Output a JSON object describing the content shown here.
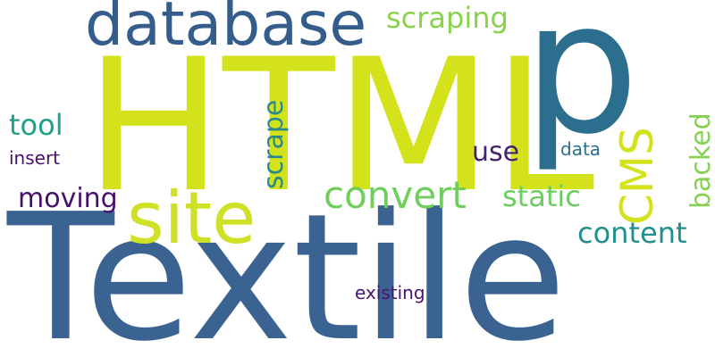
{
  "words": {
    "textile": {
      "text": "Textile",
      "color": "#3b6392"
    },
    "html": {
      "text": "HTML",
      "color": "#d3e21a"
    },
    "p": {
      "text": "p",
      "color": "#2c6e8d"
    },
    "site": {
      "text": "site",
      "color": "#cfe126"
    },
    "database": {
      "text": "database",
      "color": "#355d8c"
    },
    "convert": {
      "text": "convert",
      "color": "#6fcf5a"
    },
    "cms": {
      "text": "CMS",
      "color": "#d4e21b"
    },
    "scraping": {
      "text": "scraping",
      "color": "#88d24c"
    },
    "static": {
      "text": "static",
      "color": "#6acc61"
    },
    "content": {
      "text": "content",
      "color": "#218f8b"
    },
    "backed": {
      "text": "backed",
      "color": "#84d24f"
    },
    "scrape": {
      "text": "scrape",
      "color": "#2a8a8b"
    },
    "tool": {
      "text": "tool",
      "color": "#1fa187"
    },
    "moving": {
      "text": "moving",
      "color": "#46106b"
    },
    "use": {
      "text": "use",
      "color": "#45206c"
    },
    "data": {
      "text": "data",
      "color": "#2b6f8e"
    },
    "insert": {
      "text": "insert",
      "color": "#4a0f6c"
    },
    "existing": {
      "text": "existing",
      "color": "#4a136c"
    }
  }
}
